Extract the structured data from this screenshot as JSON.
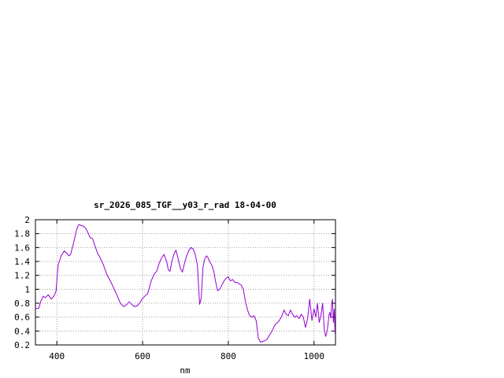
{
  "chart_data": {
    "type": "line",
    "title": "sr_2026_085_TGF__y03_r_rad 18-04-00",
    "xlabel": "nm",
    "ylabel": "",
    "xlim": [
      350,
      1050
    ],
    "ylim": [
      0.2,
      2.0
    ],
    "xticks": [
      400,
      600,
      800,
      1000
    ],
    "yticks": [
      0.2,
      0.4,
      0.6,
      0.8,
      1,
      1.2,
      1.4,
      1.6,
      1.8,
      2
    ],
    "ytick_labels": [
      "0.2",
      "0.4",
      "0.6",
      "0.8",
      "1",
      "1.2",
      "1.4",
      "1.6",
      "1.8",
      "2"
    ],
    "grid": true,
    "legend": "none",
    "series_color": "#9400d3",
    "series": [
      {
        "x": [
          350,
          358,
          362,
          368,
          373,
          380,
          387,
          393,
          398,
          403,
          410,
          417,
          423,
          428,
          432,
          437,
          441,
          446,
          451,
          456,
          461,
          467,
          472,
          478,
          483,
          489,
          495,
          501,
          508,
          516,
          523,
          531,
          540,
          548,
          556,
          563,
          569,
          575,
          581,
          587,
          593,
          599,
          605,
          612,
          620,
          627,
          633,
          639,
          645,
          650,
          656,
          660,
          664,
          669,
          674,
          678,
          683,
          688,
          693,
          698,
          703,
          708,
          713,
          718,
          723,
          728,
          733,
          737,
          741,
          745,
          749,
          752,
          755,
          758,
          760,
          762,
          764,
          766,
          770,
          775,
          780,
          785,
          790,
          795,
          800,
          805,
          810,
          815,
          820,
          825,
          830,
          835,
          840,
          845,
          850,
          855,
          860,
          865,
          870,
          875,
          880,
          885,
          890,
          895,
          900,
          905,
          910,
          915,
          920,
          925,
          930,
          935,
          940,
          945,
          950,
          955,
          960,
          965,
          970,
          975,
          980,
          985,
          990,
          995,
          1000,
          1004,
          1008,
          1012,
          1016,
          1020,
          1024,
          1027,
          1029,
          1031,
          1033,
          1035,
          1037,
          1039,
          1041,
          1043,
          1045,
          1047,
          1049
        ],
        "y": [
          0.72,
          0.73,
          0.82,
          0.9,
          0.88,
          0.92,
          0.86,
          0.9,
          0.97,
          1.35,
          1.48,
          1.55,
          1.52,
          1.48,
          1.5,
          1.62,
          1.72,
          1.86,
          1.93,
          1.92,
          1.91,
          1.88,
          1.82,
          1.74,
          1.73,
          1.62,
          1.52,
          1.45,
          1.36,
          1.22,
          1.14,
          1.04,
          0.92,
          0.8,
          0.75,
          0.78,
          0.82,
          0.78,
          0.75,
          0.76,
          0.8,
          0.86,
          0.9,
          0.94,
          1.12,
          1.22,
          1.26,
          1.38,
          1.46,
          1.5,
          1.4,
          1.28,
          1.26,
          1.42,
          1.52,
          1.56,
          1.44,
          1.3,
          1.25,
          1.38,
          1.48,
          1.56,
          1.6,
          1.58,
          1.5,
          1.34,
          0.78,
          0.88,
          1.32,
          1.44,
          1.48,
          1.46,
          1.42,
          1.38,
          1.36,
          1.34,
          1.3,
          1.26,
          1.12,
          0.98,
          1.0,
          1.06,
          1.12,
          1.16,
          1.18,
          1.12,
          1.14,
          1.1,
          1.1,
          1.08,
          1.06,
          1.0,
          0.82,
          0.7,
          0.62,
          0.6,
          0.62,
          0.55,
          0.3,
          0.24,
          0.25,
          0.26,
          0.28,
          0.33,
          0.38,
          0.44,
          0.5,
          0.52,
          0.56,
          0.62,
          0.7,
          0.64,
          0.62,
          0.7,
          0.64,
          0.6,
          0.62,
          0.58,
          0.64,
          0.6,
          0.45,
          0.58,
          0.86,
          0.55,
          0.72,
          0.6,
          0.8,
          0.52,
          0.62,
          0.8,
          0.42,
          0.32,
          0.36,
          0.42,
          0.52,
          0.63,
          0.67,
          0.58,
          0.78,
          0.86,
          0.52,
          0.72,
          0.36
        ]
      }
    ]
  }
}
